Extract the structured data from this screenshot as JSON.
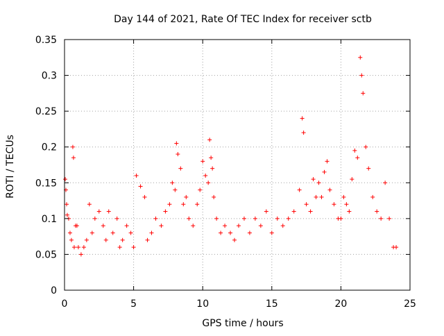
{
  "chart_data": {
    "type": "scatter",
    "title": "Day 144 of 2021, Rate Of TEC Index for receiver sctb",
    "xlabel": "GPS time / hours",
    "ylabel": "ROTI / TECUs",
    "xlim": [
      0,
      25
    ],
    "ylim": [
      0,
      0.35
    ],
    "x_ticks": [
      0,
      5,
      10,
      15,
      20,
      25
    ],
    "x_tick_labels": [
      "0",
      "5",
      "10",
      "15",
      "20",
      "25"
    ],
    "y_ticks": [
      0,
      0.05,
      0.1,
      0.15,
      0.2,
      0.25,
      0.3,
      0.35
    ],
    "y_tick_labels": [
      "0",
      "0.05",
      "0.1",
      "0.15",
      "0.2",
      "0.25",
      "0.3",
      "0.35"
    ],
    "grid": true,
    "marker": "plus",
    "series": [
      {
        "name": "ROTI",
        "color": "#ff0000",
        "x": [
          0.05,
          0.1,
          0.15,
          0.2,
          0.3,
          0.4,
          0.5,
          0.6,
          0.65,
          0.7,
          0.8,
          0.9,
          1.0,
          1.2,
          1.4,
          1.6,
          1.8,
          2.0,
          2.2,
          2.5,
          2.8,
          3.0,
          3.2,
          3.5,
          3.8,
          4.0,
          4.2,
          4.5,
          4.8,
          5.0,
          5.2,
          5.5,
          5.8,
          6.0,
          6.3,
          6.6,
          7.0,
          7.3,
          7.6,
          7.8,
          8.0,
          8.1,
          8.2,
          8.4,
          8.6,
          8.8,
          9.0,
          9.3,
          9.6,
          9.8,
          10.0,
          10.2,
          10.4,
          10.5,
          10.6,
          10.7,
          10.8,
          11.0,
          11.3,
          11.6,
          12.0,
          12.3,
          12.6,
          13.0,
          13.4,
          13.8,
          14.2,
          14.6,
          15.0,
          15.4,
          15.8,
          16.2,
          16.6,
          17.0,
          17.2,
          17.3,
          17.5,
          17.8,
          18.0,
          18.2,
          18.4,
          18.6,
          18.8,
          19.0,
          19.2,
          19.5,
          19.8,
          20.0,
          20.2,
          20.4,
          20.6,
          20.8,
          21.0,
          21.2,
          21.4,
          21.5,
          21.6,
          21.8,
          22.0,
          22.3,
          22.6,
          22.9,
          23.2,
          23.5,
          23.8,
          24.0
        ],
        "y": [
          0.155,
          0.14,
          0.12,
          0.105,
          0.1,
          0.08,
          0.07,
          0.2,
          0.185,
          0.06,
          0.09,
          0.09,
          0.06,
          0.05,
          0.06,
          0.07,
          0.12,
          0.08,
          0.1,
          0.11,
          0.09,
          0.07,
          0.11,
          0.08,
          0.1,
          0.06,
          0.07,
          0.09,
          0.08,
          0.06,
          0.16,
          0.145,
          0.13,
          0.07,
          0.08,
          0.1,
          0.09,
          0.11,
          0.12,
          0.15,
          0.14,
          0.205,
          0.19,
          0.17,
          0.12,
          0.13,
          0.1,
          0.09,
          0.12,
          0.14,
          0.18,
          0.16,
          0.15,
          0.21,
          0.185,
          0.17,
          0.13,
          0.1,
          0.08,
          0.09,
          0.08,
          0.07,
          0.09,
          0.1,
          0.08,
          0.1,
          0.09,
          0.11,
          0.08,
          0.1,
          0.09,
          0.1,
          0.11,
          0.14,
          0.24,
          0.22,
          0.12,
          0.11,
          0.155,
          0.13,
          0.15,
          0.13,
          0.165,
          0.18,
          0.14,
          0.12,
          0.1,
          0.1,
          0.13,
          0.12,
          0.11,
          0.155,
          0.195,
          0.185,
          0.325,
          0.3,
          0.275,
          0.2,
          0.17,
          0.13,
          0.11,
          0.1,
          0.15,
          0.1,
          0.06,
          0.06
        ]
      }
    ]
  }
}
